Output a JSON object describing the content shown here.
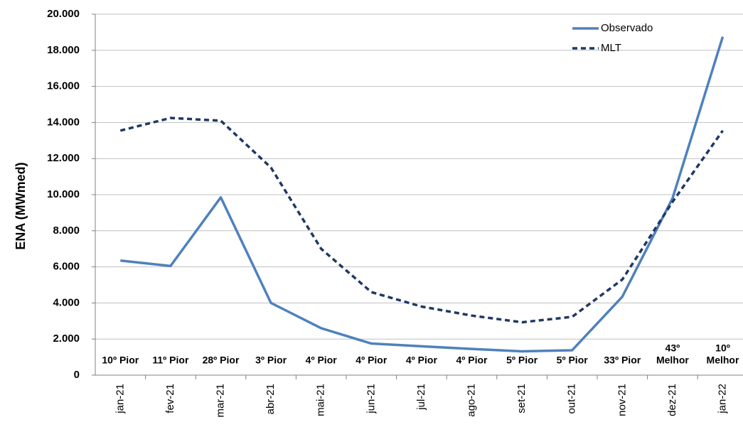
{
  "chart_data": {
    "type": "line",
    "y_label": "ENA (MWmed)",
    "categories": [
      "jan-21",
      "fev-21",
      "mar-21",
      "abr-21",
      "mai-21",
      "jun-21",
      "jul-21",
      "ago-21",
      "set-21",
      "out-21",
      "nov-21",
      "dez-21",
      "jan-22"
    ],
    "series": [
      {
        "name": "Observado",
        "color": "#4f81bd",
        "dash": false,
        "values": [
          6350,
          6050,
          9850,
          4000,
          2600,
          1750,
          1600,
          1450,
          1320,
          1380,
          4350,
          9800,
          18750
        ]
      },
      {
        "name": "MLT",
        "color": "#1f3864",
        "dash": true,
        "values": [
          13550,
          14250,
          14100,
          11500,
          7000,
          4600,
          3800,
          3300,
          2930,
          3230,
          5300,
          9600,
          13550
        ]
      }
    ],
    "rank_labels": [
      [
        "10º Pior"
      ],
      [
        "11º Pior"
      ],
      [
        "28º Pior"
      ],
      [
        "3º Pior"
      ],
      [
        "4º Pior"
      ],
      [
        "4º Pior"
      ],
      [
        "4º Pior"
      ],
      [
        "4º Pior"
      ],
      [
        "5º Pior"
      ],
      [
        "5º Pior"
      ],
      [
        "33º Pior"
      ],
      [
        "43º",
        "Melhor"
      ],
      [
        "10º",
        "Melhor"
      ]
    ],
    "ylim": [
      0,
      20000
    ],
    "yticks": [
      0,
      {
        "value": 2000,
        "label": "2.000"
      },
      {
        "value": 4000,
        "label": "4.000"
      },
      {
        "value": 6000,
        "label": "6.000"
      },
      {
        "value": 8000,
        "label": "8.000"
      },
      {
        "value": 10000,
        "label": "10.000"
      },
      {
        "value": 12000,
        "label": "12.000"
      },
      {
        "value": 14000,
        "label": "14.000"
      },
      {
        "value": 16000,
        "label": "16.000"
      },
      {
        "value": 18000,
        "label": "18.000"
      },
      {
        "value": 20000,
        "label": "20.000"
      }
    ],
    "grid": true
  }
}
